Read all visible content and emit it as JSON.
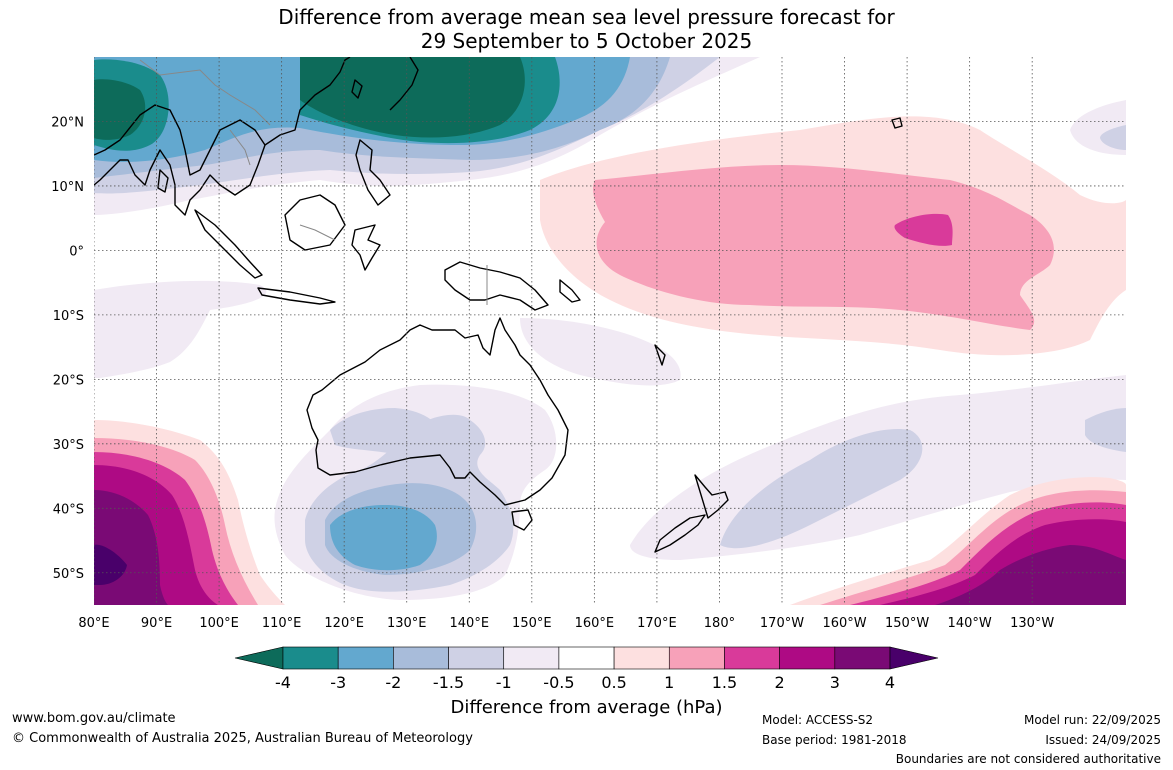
{
  "title": {
    "line1": "Difference from average mean sea level pressure forecast for",
    "line2": "29 September to 5 October 2025"
  },
  "map": {
    "lon_range_east": [
      80,
      245
    ],
    "lat_range": [
      -55,
      30
    ],
    "lon_ticks": [
      {
        "lon": 80,
        "label": "80°E"
      },
      {
        "lon": 90,
        "label": "90°E"
      },
      {
        "lon": 100,
        "label": "100°E"
      },
      {
        "lon": 110,
        "label": "110°E"
      },
      {
        "lon": 120,
        "label": "120°E"
      },
      {
        "lon": 130,
        "label": "130°E"
      },
      {
        "lon": 140,
        "label": "140°E"
      },
      {
        "lon": 150,
        "label": "150°E"
      },
      {
        "lon": 160,
        "label": "160°E"
      },
      {
        "lon": 170,
        "label": "170°E"
      },
      {
        "lon": 180,
        "label": "180°"
      },
      {
        "lon": 190,
        "label": "170°W"
      },
      {
        "lon": 200,
        "label": "160°W"
      },
      {
        "lon": 210,
        "label": "150°W"
      },
      {
        "lon": 220,
        "label": "140°W"
      },
      {
        "lon": 230,
        "label": "130°W"
      }
    ],
    "lat_ticks": [
      {
        "lat": 20,
        "label": "20°N"
      },
      {
        "lat": 10,
        "label": "10°N"
      },
      {
        "lat": 0,
        "label": "0°"
      },
      {
        "lat": -10,
        "label": "10°S"
      },
      {
        "lat": -20,
        "label": "20°S"
      },
      {
        "lat": -30,
        "label": "30°S"
      },
      {
        "lat": -40,
        "label": "40°S"
      },
      {
        "lat": -50,
        "label": "50°S"
      }
    ]
  },
  "colorbar": {
    "ticks": [
      "-4",
      "-3",
      "-2",
      "-1.5",
      "-1",
      "-0.5",
      "0.5",
      "1",
      "1.5",
      "2",
      "3",
      "4"
    ],
    "colors": [
      "#1a8c8c",
      "#63a8cf",
      "#a8bcda",
      "#cfd1e5",
      "#f1eaf4",
      "#ffffff",
      "#fde0e0",
      "#f7a1b9",
      "#d93a9a",
      "#ae0a84",
      "#7a0a75"
    ],
    "under_color": "#0d6b5a",
    "over_color": "#49006a",
    "label": "Difference from average (hPa)"
  },
  "footer": {
    "website": "www.bom.gov.au/climate",
    "copyright": "© Commonwealth of Australia 2025, Australian Bureau of Meteorology",
    "model": "Model: ACCESS-S2",
    "base_period": "Base period: 1981-2018",
    "model_run": "Model run: 22/09/2025",
    "issued": "Issued: 24/09/2025",
    "disclaimer": "Boundaries are not considered authoritative"
  },
  "anomaly_regions": [
    {
      "name": "north-asia-low",
      "level_hpa": -4,
      "color": "#0d6b5a"
    },
    {
      "name": "bay-of-bengal-low",
      "level_hpa": -3,
      "color": "#1a8c8c"
    },
    {
      "name": "central-pacific-high",
      "level_hpa": 1.5,
      "color": "#d93a9a"
    },
    {
      "name": "southern-ocean-west-high",
      "level_hpa": 4,
      "color": "#49006a"
    },
    {
      "name": "southern-ocean-east-high",
      "level_hpa": 4,
      "color": "#7a0a75"
    },
    {
      "name": "south-of-australia-low",
      "level_hpa": -2,
      "color": "#63a8cf"
    }
  ]
}
